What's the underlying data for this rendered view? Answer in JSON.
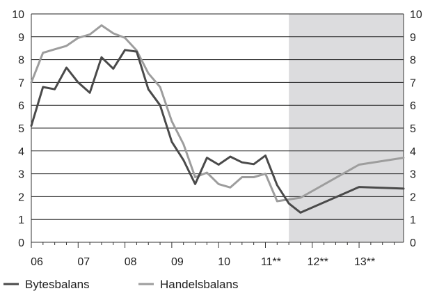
{
  "chart_data": {
    "type": "line",
    "title": "",
    "xlabel": "",
    "ylabel": "",
    "x_tick_labels": [
      "06",
      "07",
      "08",
      "09",
      "10",
      "11**",
      "12**",
      "13**"
    ],
    "y_ticks": [
      "0",
      "1",
      "2",
      "3",
      "4",
      "5",
      "6",
      "7",
      "8",
      "9",
      "10"
    ],
    "ylim": [
      0,
      10
    ],
    "xlim": [
      2006,
      2013.95
    ],
    "forecast_shading": {
      "from": 2011.5,
      "to": 2013.95,
      "color": "#dcdcde"
    },
    "grid": "horizontal",
    "legend_position": "bottom-left",
    "series": [
      {
        "name": "Bytesbalans",
        "color": "#4a4a4a",
        "points": [
          [
            2006.0,
            5.1
          ],
          [
            2006.25,
            6.8
          ],
          [
            2006.5,
            6.7
          ],
          [
            2006.75,
            7.65
          ],
          [
            2007.0,
            7.0
          ],
          [
            2007.25,
            6.55
          ],
          [
            2007.5,
            8.1
          ],
          [
            2007.75,
            7.6
          ],
          [
            2008.0,
            8.42
          ],
          [
            2008.25,
            8.35
          ],
          [
            2008.5,
            6.7
          ],
          [
            2008.75,
            6.0
          ],
          [
            2009.0,
            4.4
          ],
          [
            2009.25,
            3.6
          ],
          [
            2009.5,
            2.55
          ],
          [
            2009.75,
            3.7
          ],
          [
            2010.0,
            3.4
          ],
          [
            2010.25,
            3.75
          ],
          [
            2010.5,
            3.5
          ],
          [
            2010.75,
            3.42
          ],
          [
            2011.0,
            3.8
          ],
          [
            2011.25,
            2.5
          ],
          [
            2011.5,
            1.7
          ],
          [
            2011.75,
            1.3
          ],
          [
            2013.0,
            2.42
          ],
          [
            2013.95,
            2.35
          ]
        ]
      },
      {
        "name": "Handelsbalans",
        "color": "#9d9d9d",
        "points": [
          [
            2006.0,
            7.0
          ],
          [
            2006.25,
            8.3
          ],
          [
            2006.5,
            8.45
          ],
          [
            2006.75,
            8.6
          ],
          [
            2007.0,
            8.95
          ],
          [
            2007.25,
            9.1
          ],
          [
            2007.5,
            9.5
          ],
          [
            2007.75,
            9.15
          ],
          [
            2008.0,
            8.95
          ],
          [
            2008.25,
            8.4
          ],
          [
            2008.5,
            7.4
          ],
          [
            2008.75,
            6.8
          ],
          [
            2009.0,
            5.3
          ],
          [
            2009.25,
            4.3
          ],
          [
            2009.5,
            2.85
          ],
          [
            2009.75,
            3.05
          ],
          [
            2010.0,
            2.55
          ],
          [
            2010.25,
            2.4
          ],
          [
            2010.5,
            2.85
          ],
          [
            2010.75,
            2.85
          ],
          [
            2011.0,
            3.0
          ],
          [
            2011.25,
            1.8
          ],
          [
            2011.75,
            1.95
          ],
          [
            2013.0,
            3.4
          ],
          [
            2013.95,
            3.7
          ]
        ]
      }
    ]
  }
}
